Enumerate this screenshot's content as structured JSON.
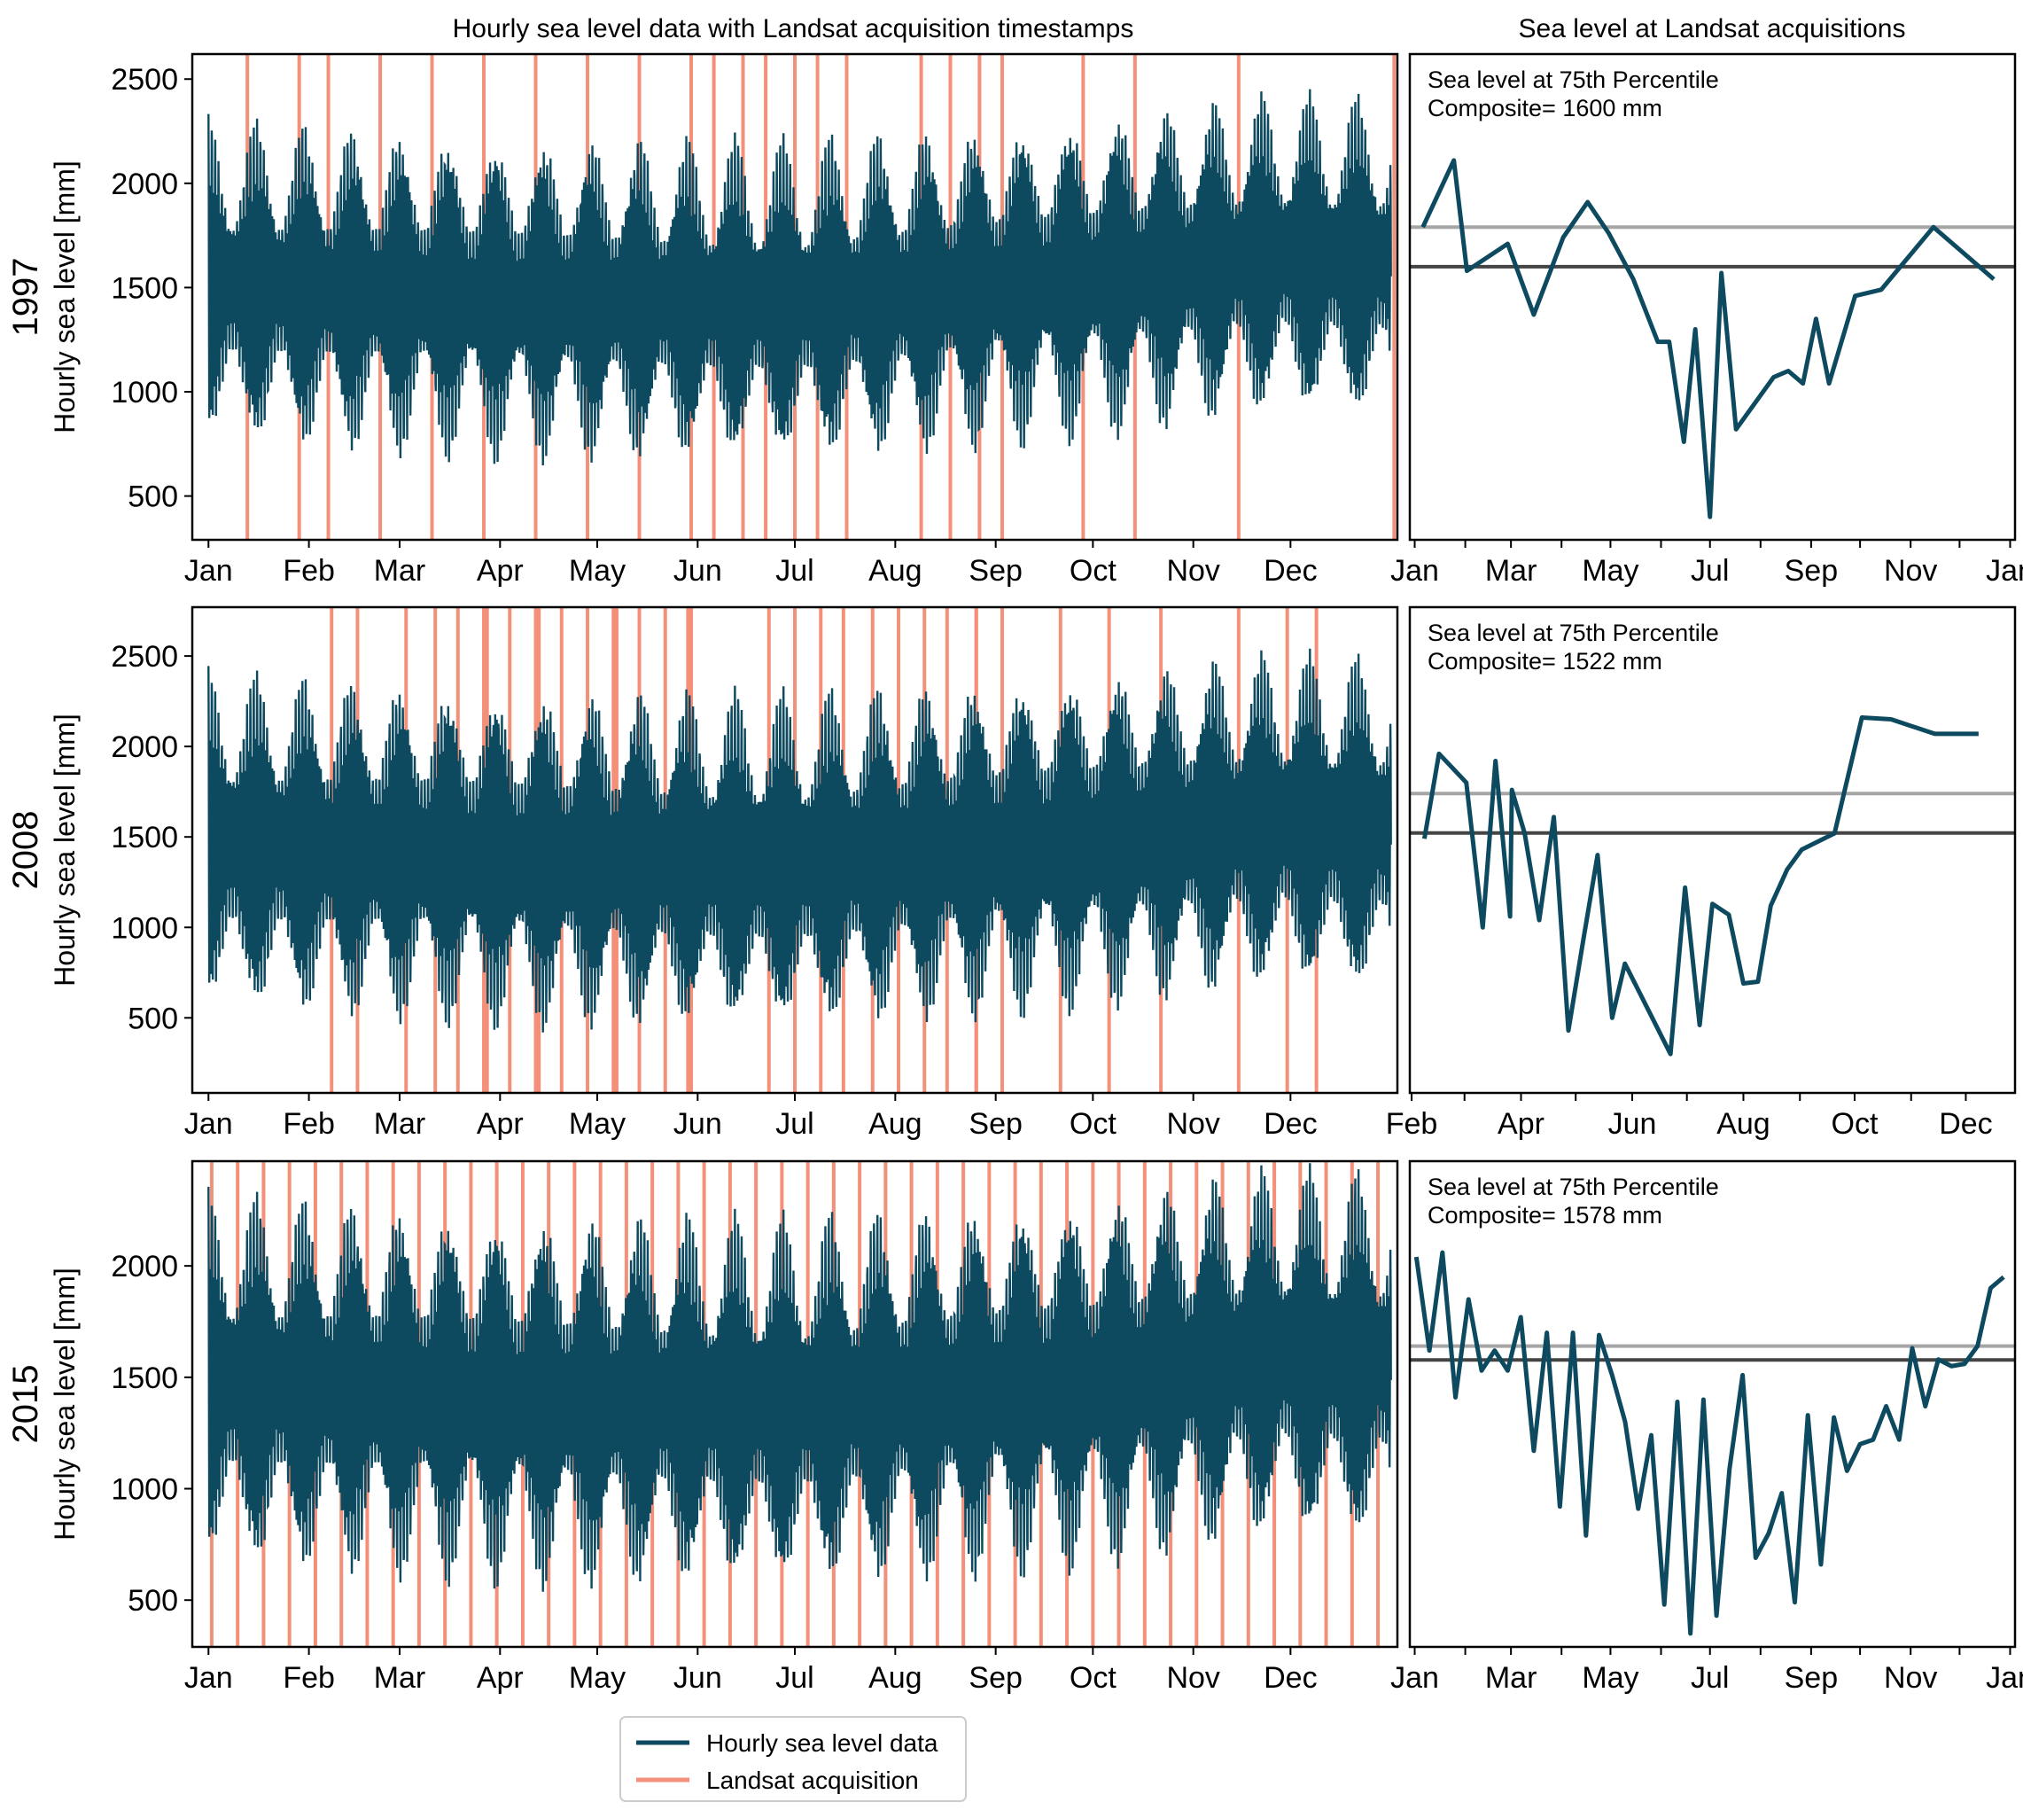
{
  "figure": {
    "left_title": "Hourly sea level data with Landsat acquisition timestamps",
    "right_title": "Sea level at Landsat acquisitions"
  },
  "legend": {
    "entries": [
      {
        "label": "Hourly sea level data",
        "color": "#0d4a5f"
      },
      {
        "label": "Landsat acquisition",
        "color": "#f4907a"
      }
    ]
  },
  "colors": {
    "hourly": "#0d4a5f",
    "landsat": "#f4907a",
    "composite_line": "#444444",
    "upper_line": "#a5a5a5"
  },
  "chart_data": [
    {
      "type": "area",
      "panel": "hourly-1997",
      "year_label": "1997",
      "ylabel": "Hourly sea level [mm]",
      "xlim": [
        -5,
        367
      ],
      "ylim": [
        290,
        2620
      ],
      "yticks": [
        500,
        1000,
        1500,
        2000,
        2500
      ],
      "month_ticks": [
        0,
        31,
        59,
        90,
        120,
        151,
        181,
        212,
        243,
        273,
        304,
        334
      ],
      "month_labels": [
        "Jan",
        "Feb",
        "Mar",
        "Apr",
        "May",
        "Jun",
        "Jul",
        "Aug",
        "Sep",
        "Oct",
        "Nov",
        "Dec"
      ],
      "mean_level": [
        [
          0,
          1520
        ],
        [
          90,
          1450
        ],
        [
          182,
          1430
        ],
        [
          273,
          1550
        ],
        [
          330,
          1650
        ],
        [
          365,
          1620
        ]
      ],
      "tidal_amplitude": {
        "spring": 650,
        "neap": 250
      },
      "landsat_acquisitions": [
        12,
        28,
        37,
        53,
        69,
        85,
        101,
        117,
        133,
        149,
        156,
        165,
        172,
        181,
        188,
        197,
        220,
        229,
        238,
        245,
        270,
        286,
        318,
        366
      ]
    },
    {
      "type": "line",
      "panel": "acq-1997",
      "title": "Sea level at 75th Percentile",
      "subtitle": "Composite= 1600 mm",
      "xlim": [
        -3,
        368
      ],
      "ylim": [
        290,
        2620
      ],
      "month_ticks": [
        0,
        31,
        59,
        90,
        120,
        151,
        181,
        212,
        243,
        273,
        304,
        334,
        365
      ],
      "month_labels": [
        "Jan",
        "",
        "Mar",
        "",
        "May",
        "",
        "Jul",
        "",
        "Sep",
        "",
        "Nov",
        "",
        "Jan"
      ],
      "hlines": [
        1790,
        1600
      ],
      "x": [
        5,
        24,
        32,
        57,
        73,
        91,
        106,
        119,
        134,
        149,
        156,
        165,
        172,
        181,
        188,
        197,
        220,
        229,
        238,
        246,
        254,
        270,
        286,
        318,
        355
      ],
      "values": [
        1790,
        2110,
        1580,
        1710,
        1370,
        1740,
        1910,
        1760,
        1540,
        1240,
        1240,
        760,
        1300,
        400,
        1570,
        820,
        1070,
        1100,
        1040,
        1350,
        1040,
        1460,
        1490,
        1790,
        1540
      ]
    },
    {
      "type": "area",
      "panel": "hourly-2008",
      "year_label": "2008",
      "ylabel": "Hourly sea level [mm]",
      "xlim": [
        -5,
        367
      ],
      "ylim": [
        85,
        2770
      ],
      "yticks": [
        500,
        1000,
        1500,
        2000,
        2500
      ],
      "month_ticks": [
        0,
        31,
        59,
        90,
        120,
        151,
        181,
        212,
        243,
        273,
        304,
        334
      ],
      "month_labels": [
        "Jan",
        "Feb",
        "Mar",
        "Apr",
        "May",
        "Jun",
        "Jul",
        "Aug",
        "Sep",
        "Oct",
        "Nov",
        "Dec"
      ],
      "mean_level": [
        [
          0,
          1470
        ],
        [
          100,
          1380
        ],
        [
          182,
          1360
        ],
        [
          273,
          1480
        ],
        [
          330,
          1580
        ],
        [
          365,
          1540
        ]
      ],
      "tidal_amplitude": {
        "spring": 780,
        "neap": 330
      },
      "landsat_acquisitions": [
        38,
        46,
        61,
        70,
        77,
        85,
        86,
        93,
        101,
        102,
        109,
        117,
        125,
        126,
        133,
        141,
        148,
        149,
        149,
        149,
        173,
        181,
        189,
        196,
        205,
        213,
        221,
        228,
        237,
        237,
        245,
        263,
        278,
        294,
        318,
        333,
        342
      ]
    },
    {
      "type": "line",
      "panel": "acq-2008",
      "title": "Sea level at 75th Percentile",
      "subtitle": "Composite= 1522 mm",
      "xlim": [
        30,
        362
      ],
      "ylim": [
        85,
        2770
      ],
      "month_ticks": [
        31,
        60,
        91,
        121,
        152,
        182,
        213,
        244,
        274,
        305,
        335
      ],
      "month_labels": [
        "Feb",
        "",
        "Apr",
        "",
        "Jun",
        "",
        "Aug",
        "",
        "Oct",
        "",
        "Dec"
      ],
      "hlines": [
        1740,
        1522
      ],
      "x": [
        38,
        46,
        61,
        70,
        77,
        85,
        86,
        93,
        101,
        109,
        117,
        125,
        133,
        141,
        148,
        173,
        181,
        189,
        196,
        205,
        213,
        221,
        228,
        237,
        245,
        263,
        278,
        294,
        318,
        333,
        342
      ],
      "values": [
        1490,
        1960,
        1800,
        1000,
        1920,
        1060,
        1760,
        1520,
        1040,
        1610,
        430,
        920,
        1400,
        500,
        800,
        300,
        1220,
        460,
        1130,
        1070,
        690,
        700,
        1120,
        1320,
        1430,
        1520,
        2160,
        2150,
        2070,
        2070,
        2070
      ]
    },
    {
      "type": "area",
      "panel": "hourly-2015",
      "year_label": "2015",
      "ylabel": "Hourly sea level [mm]",
      "xlim": [
        -5,
        367
      ],
      "ylim": [
        290,
        2470
      ],
      "yticks": [
        500,
        1000,
        1500,
        2000
      ],
      "month_ticks": [
        0,
        31,
        59,
        90,
        120,
        151,
        181,
        212,
        243,
        273,
        304,
        334
      ],
      "month_labels": [
        "Jan",
        "Feb",
        "Mar",
        "Apr",
        "May",
        "Jun",
        "Jul",
        "Aug",
        "Sep",
        "Oct",
        "Nov",
        "Dec"
      ],
      "mean_level": [
        [
          0,
          1480
        ],
        [
          100,
          1400
        ],
        [
          182,
          1380
        ],
        [
          273,
          1480
        ],
        [
          330,
          1600
        ],
        [
          365,
          1560
        ]
      ],
      "tidal_amplitude": {
        "spring": 700,
        "neap": 280
      },
      "landsat_acquisitions": [
        1,
        9,
        17,
        25,
        33,
        41,
        49,
        57,
        65,
        73,
        81,
        89,
        97,
        105,
        113,
        121,
        129,
        137,
        145,
        153,
        161,
        169,
        177,
        185,
        193,
        201,
        209,
        217,
        225,
        233,
        241,
        249,
        257,
        265,
        273,
        281,
        289,
        297,
        305,
        313,
        321,
        329,
        337,
        345,
        353,
        361
      ]
    },
    {
      "type": "line",
      "panel": "acq-2015",
      "title": "Sea level at 75th Percentile",
      "subtitle": "Composite= 1578 mm",
      "xlim": [
        -3,
        368
      ],
      "ylim": [
        290,
        2470
      ],
      "month_ticks": [
        0,
        31,
        59,
        90,
        120,
        151,
        181,
        212,
        243,
        273,
        304,
        334,
        365
      ],
      "month_labels": [
        "Jan",
        "",
        "Mar",
        "",
        "May",
        "",
        "Jul",
        "",
        "Sep",
        "",
        "Nov",
        "",
        "Jan"
      ],
      "hlines": [
        1640,
        1578
      ],
      "x": [
        1,
        9,
        17,
        25,
        33,
        41,
        49,
        57,
        65,
        73,
        81,
        89,
        97,
        105,
        113,
        121,
        129,
        137,
        145,
        153,
        161,
        169,
        177,
        185,
        193,
        201,
        209,
        217,
        225,
        233,
        241,
        249,
        257,
        265,
        273,
        281,
        289,
        297,
        305,
        313,
        321,
        329,
        337,
        345,
        353,
        361
      ],
      "values": [
        2040,
        1620,
        2060,
        1410,
        1850,
        1530,
        1620,
        1530,
        1770,
        1170,
        1700,
        920,
        1700,
        790,
        1690,
        1510,
        1300,
        910,
        1240,
        480,
        1390,
        350,
        1400,
        430,
        1090,
        1510,
        690,
        800,
        980,
        490,
        1330,
        660,
        1320,
        1080,
        1200,
        1220,
        1370,
        1220,
        1630,
        1370,
        1580,
        1550,
        1560,
        1640,
        1900,
        1950
      ]
    }
  ]
}
